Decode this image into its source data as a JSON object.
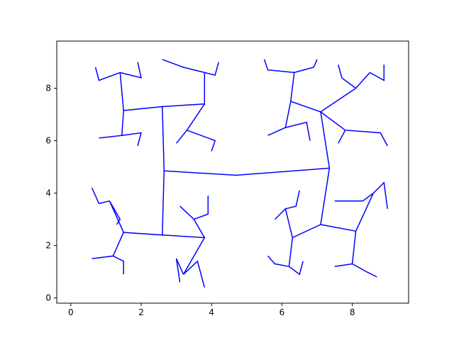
{
  "chart_data": {
    "type": "line",
    "title": "",
    "xlabel": "",
    "ylabel": "",
    "xlim": [
      -0.4,
      9.6
    ],
    "ylim": [
      -0.2,
      9.8
    ],
    "x_ticks": [
      0,
      2,
      4,
      6,
      8
    ],
    "x_tick_labels": [
      "0",
      "2",
      "4",
      "6",
      "8"
    ],
    "y_ticks": [
      0,
      2,
      4,
      6,
      8
    ],
    "y_tick_labels": [
      "0",
      "2",
      "4",
      "6",
      "8"
    ],
    "grid": false,
    "legend": "none",
    "line_color": "#0000ff",
    "series": [
      {
        "segments": [
          [
            [
              2.65,
              4.85
            ],
            [
              4.7,
              4.68
            ],
            [
              7.35,
              4.95
            ]
          ],
          [
            [
              2.65,
              4.85
            ],
            [
              2.6,
              7.3
            ],
            [
              1.5,
              7.15
            ],
            [
              1.4,
              8.6
            ]
          ],
          [
            [
              2.6,
              7.3
            ],
            [
              3.8,
              7.4
            ],
            [
              3.8,
              8.6
            ]
          ],
          [
            [
              2.65,
              4.85
            ],
            [
              2.6,
              2.4
            ],
            [
              1.5,
              2.5
            ],
            [
              1.1,
              3.7
            ]
          ],
          [
            [
              2.6,
              2.4
            ],
            [
              3.8,
              2.3
            ],
            [
              3.2,
              0.9
            ]
          ],
          [
            [
              7.35,
              4.95
            ],
            [
              7.1,
              7.1
            ],
            [
              6.25,
              7.5
            ],
            [
              6.35,
              8.6
            ]
          ],
          [
            [
              7.1,
              7.1
            ],
            [
              8.1,
              8.0
            ],
            [
              8.5,
              8.6
            ]
          ],
          [
            [
              7.1,
              2.8
            ],
            [
              8.1,
              2.55
            ],
            [
              8.6,
              4.0
            ]
          ],
          [
            [
              7.35,
              4.95
            ],
            [
              7.1,
              2.8
            ],
            [
              6.3,
              2.3
            ],
            [
              6.2,
              1.2
            ]
          ],
          [
            [
              1.5,
              7.15
            ],
            [
              1.45,
              6.2
            ],
            [
              0.8,
              6.1
            ]
          ],
          [
            [
              1.4,
              8.6
            ],
            [
              0.8,
              8.3
            ],
            [
              0.7,
              8.8
            ]
          ],
          [
            [
              1.4,
              8.6
            ],
            [
              2.0,
              8.4
            ],
            [
              1.9,
              9.0
            ]
          ],
          [
            [
              1.45,
              6.2
            ],
            [
              2.0,
              6.3
            ],
            [
              1.9,
              5.8
            ]
          ],
          [
            [
              3.8,
              8.6
            ],
            [
              3.2,
              8.8
            ],
            [
              2.6,
              9.1
            ]
          ],
          [
            [
              3.8,
              8.6
            ],
            [
              4.1,
              8.5
            ],
            [
              4.2,
              9.0
            ]
          ],
          [
            [
              3.8,
              7.4
            ],
            [
              3.3,
              6.4
            ],
            [
              3.0,
              5.9
            ]
          ],
          [
            [
              3.3,
              6.4
            ],
            [
              4.1,
              6.0
            ],
            [
              4.0,
              5.6
            ]
          ],
          [
            [
              1.1,
              3.7
            ],
            [
              0.8,
              3.6
            ],
            [
              0.6,
              4.2
            ]
          ],
          [
            [
              1.1,
              3.7
            ],
            [
              1.4,
              3.0
            ],
            [
              1.3,
              2.8
            ]
          ],
          [
            [
              1.5,
              2.5
            ],
            [
              1.2,
              1.6
            ],
            [
              0.6,
              1.5
            ]
          ],
          [
            [
              1.2,
              1.6
            ],
            [
              1.5,
              1.4
            ],
            [
              1.5,
              0.9
            ]
          ],
          [
            [
              3.8,
              2.3
            ],
            [
              3.5,
              3.0
            ],
            [
              3.1,
              3.5
            ]
          ],
          [
            [
              3.5,
              3.0
            ],
            [
              3.9,
              3.2
            ],
            [
              3.9,
              3.9
            ]
          ],
          [
            [
              3.2,
              0.9
            ],
            [
              3.0,
              1.5
            ],
            [
              3.1,
              0.6
            ]
          ],
          [
            [
              3.2,
              0.9
            ],
            [
              3.6,
              1.4
            ],
            [
              3.8,
              0.4
            ]
          ],
          [
            [
              6.35,
              8.6
            ],
            [
              5.6,
              8.7
            ],
            [
              5.5,
              9.1
            ]
          ],
          [
            [
              6.35,
              8.6
            ],
            [
              6.9,
              8.8
            ],
            [
              7.0,
              9.1
            ]
          ],
          [
            [
              6.25,
              7.5
            ],
            [
              6.1,
              6.5
            ],
            [
              5.6,
              6.2
            ]
          ],
          [
            [
              6.1,
              6.5
            ],
            [
              6.7,
              6.7
            ],
            [
              6.8,
              6.0
            ]
          ],
          [
            [
              8.1,
              8.0
            ],
            [
              7.7,
              8.4
            ],
            [
              7.6,
              8.9
            ]
          ],
          [
            [
              8.5,
              8.6
            ],
            [
              8.9,
              8.3
            ],
            [
              8.9,
              8.9
            ]
          ],
          [
            [
              7.1,
              7.1
            ],
            [
              7.8,
              6.4
            ],
            [
              7.6,
              5.9
            ]
          ],
          [
            [
              7.8,
              6.4
            ],
            [
              8.8,
              6.3
            ],
            [
              9.0,
              5.8
            ]
          ],
          [
            [
              6.3,
              2.3
            ],
            [
              6.1,
              3.4
            ],
            [
              5.8,
              3.0
            ]
          ],
          [
            [
              6.1,
              3.4
            ],
            [
              6.4,
              3.5
            ],
            [
              6.5,
              4.1
            ]
          ],
          [
            [
              6.2,
              1.2
            ],
            [
              5.8,
              1.3
            ],
            [
              5.6,
              1.6
            ]
          ],
          [
            [
              6.2,
              1.2
            ],
            [
              6.5,
              0.9
            ],
            [
              6.6,
              1.4
            ]
          ],
          [
            [
              8.1,
              2.55
            ],
            [
              8.0,
              1.3
            ],
            [
              7.5,
              1.2
            ]
          ],
          [
            [
              8.0,
              1.3
            ],
            [
              8.4,
              1.0
            ],
            [
              8.7,
              0.8
            ]
          ],
          [
            [
              8.6,
              4.0
            ],
            [
              8.3,
              3.7
            ],
            [
              7.5,
              3.7
            ]
          ],
          [
            [
              8.6,
              4.0
            ],
            [
              8.9,
              4.4
            ],
            [
              9.0,
              3.4
            ]
          ]
        ]
      }
    ]
  }
}
